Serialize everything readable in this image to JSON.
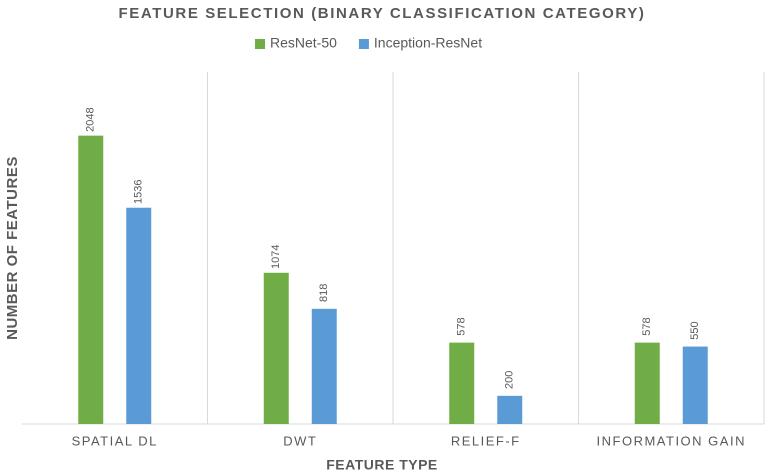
{
  "chart_data": {
    "type": "bar",
    "title": "FEATURE SELECTION (BINARY CLASSIFICATION CATEGORY)",
    "x_label": "FEATURE TYPE",
    "y_label": "NUMBER OF FEATURES",
    "categories": [
      "SPATIAL DL",
      "DWT",
      "RELIEF-F",
      "INFORMATION GAIN"
    ],
    "series": [
      {
        "name": "ResNet-50",
        "color": "#70ad47",
        "values": [
          2048,
          1074,
          578,
          578
        ]
      },
      {
        "name": "Inception-ResNet",
        "color": "#5b9bd5",
        "values": [
          1536,
          818,
          200,
          550
        ]
      }
    ],
    "ylim": [
      0,
      2500
    ],
    "legend": "top",
    "value_labels_shown": true
  }
}
